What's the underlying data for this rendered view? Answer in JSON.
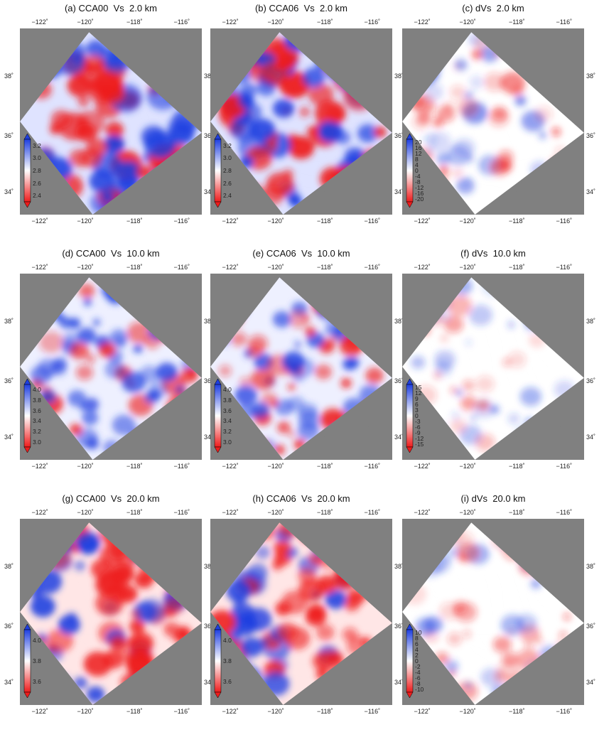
{
  "panels": [
    {
      "id": "a",
      "title": "(a) CCA00  Vs  2.0 km",
      "type": "vs",
      "cbar_ticks": [
        "3.2",
        "3.0",
        "2.8",
        "2.6",
        "2.4"
      ],
      "scheme": "strong_shallow"
    },
    {
      "id": "b",
      "title": "(b) CCA06  Vs  2.0 km",
      "type": "vs",
      "cbar_ticks": [
        "3.2",
        "3.0",
        "2.8",
        "2.6",
        "2.4"
      ],
      "scheme": "strong_shallow"
    },
    {
      "id": "c",
      "title": "(c) dVs  2.0 km",
      "type": "dvs",
      "cbar_ticks": [
        "20",
        "16",
        "12",
        "8",
        "4",
        "0",
        "-4",
        "-8",
        "-12",
        "-16",
        "-20"
      ],
      "scheme": "diff_shallow"
    },
    {
      "id": "d",
      "title": "(d) CCA00  Vs  10.0 km",
      "type": "vs",
      "cbar_ticks": [
        "4.0",
        "3.8",
        "3.6",
        "3.4",
        "3.2",
        "3.0"
      ],
      "scheme": "mid"
    },
    {
      "id": "e",
      "title": "(e) CCA06  Vs  10.0 km",
      "type": "vs",
      "cbar_ticks": [
        "4.0",
        "3.8",
        "3.6",
        "3.4",
        "3.2",
        "3.0"
      ],
      "scheme": "mid"
    },
    {
      "id": "f",
      "title": "(f) dVs  10.0 km",
      "type": "dvs",
      "cbar_ticks": [
        "15",
        "12",
        "9",
        "6",
        "3",
        "0",
        "-3",
        "-6",
        "-9",
        "-12",
        "-15"
      ],
      "scheme": "diff_mid"
    },
    {
      "id": "g",
      "title": "(g) CCA00  Vs  20.0 km",
      "type": "vs",
      "cbar_ticks": [
        "4.0",
        "3.8",
        "3.6"
      ],
      "scheme": "deep"
    },
    {
      "id": "h",
      "title": "(h) CCA06  Vs  20.0 km",
      "type": "vs",
      "cbar_ticks": [
        "4.0",
        "3.8",
        "3.6"
      ],
      "scheme": "deep"
    },
    {
      "id": "i",
      "title": "(i) dVs  20.0 km",
      "type": "dvs",
      "cbar_ticks": [
        "10",
        "8",
        "6",
        "4",
        "2",
        "0",
        "-2",
        "-4",
        "-6",
        "-8",
        "-10"
      ],
      "scheme": "diff_deep"
    }
  ],
  "lon_labels": [
    "−122˚",
    "−120˚",
    "−118˚",
    "−116˚"
  ],
  "lat_labels": [
    "38˚",
    "36˚",
    "34˚"
  ],
  "colors": {
    "background": "#808080",
    "positive": "#1f3fe0",
    "negative": "#ee1c1c",
    "neutral": "#ffffff",
    "faults": "#000000"
  }
}
